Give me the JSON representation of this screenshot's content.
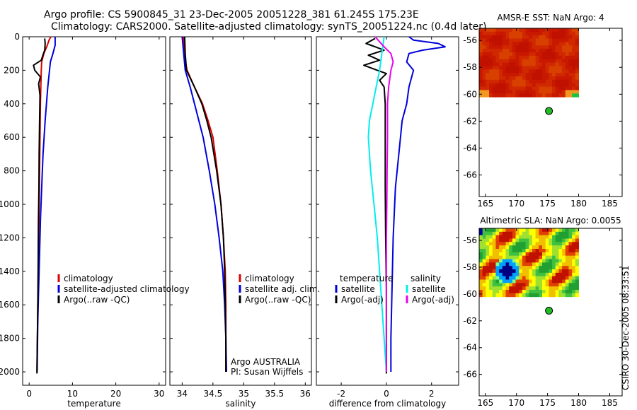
{
  "title": {
    "line1": "Argo profile: CS 5900845_31 23-Dec-2005 20051228_381 61.245S 175.23E",
    "line2": "Climatology: CARS2000. Satellite-adjusted climatology: synTS_20051224.nc (0.4d later)"
  },
  "side_label": "CSIRO 30-Dec-2005 08:33:51",
  "colors": {
    "climatology": "#dd0000",
    "satellite": "#0000dd",
    "argo": "#000000",
    "salinity_satellite": "#00eeee",
    "salinity_argo": "#ee00ee",
    "float_marker": "#22bb22"
  },
  "chart_data": [
    {
      "id": "temperature",
      "type": "line",
      "xlabel": "temperature",
      "ylabel": "",
      "xlim": [
        -1.5,
        31.5
      ],
      "xticks": [
        0,
        10,
        20,
        30
      ],
      "ylim": [
        2080,
        0
      ],
      "yticks": [
        0,
        200,
        400,
        600,
        800,
        1000,
        1200,
        1400,
        1600,
        1800,
        2000
      ],
      "legend": [
        {
          "label": "climatology",
          "color": "#dd0000"
        },
        {
          "label": "satellite-adjusted climatology",
          "color": "#0000dd"
        },
        {
          "label": "Argo(..raw -QC)",
          "color": "#000000"
        }
      ],
      "series": [
        {
          "name": "climatology",
          "color": "#dd0000",
          "points": [
            [
              5.0,
              0
            ],
            [
              4.6,
              20
            ],
            [
              4.2,
              50
            ],
            [
              3.4,
              100
            ],
            [
              2.9,
              150
            ],
            [
              2.8,
              200
            ],
            [
              2.7,
              300
            ],
            [
              2.6,
              400
            ],
            [
              2.55,
              500
            ],
            [
              2.45,
              700
            ],
            [
              2.35,
              900
            ],
            [
              2.25,
              1100
            ],
            [
              2.15,
              1300
            ],
            [
              2.05,
              1500
            ],
            [
              1.95,
              1700
            ],
            [
              1.85,
              1900
            ],
            [
              1.8,
              2000
            ]
          ]
        },
        {
          "name": "satellite-adjusted climatology",
          "color": "#0000dd",
          "points": [
            [
              6.0,
              0
            ],
            [
              6.0,
              50
            ],
            [
              5.5,
              100
            ],
            [
              4.9,
              150
            ],
            [
              4.3,
              300
            ],
            [
              3.7,
              500
            ],
            [
              3.2,
              700
            ],
            [
              2.9,
              900
            ],
            [
              2.6,
              1100
            ],
            [
              2.4,
              1300
            ],
            [
              2.2,
              1500
            ],
            [
              2.0,
              1700
            ],
            [
              1.9,
              1900
            ],
            [
              1.85,
              2000
            ]
          ]
        },
        {
          "name": "Argo(..raw -QC)",
          "color": "#000000",
          "points": [
            [
              3.6,
              10
            ],
            [
              3.7,
              40
            ],
            [
              3.6,
              80
            ],
            [
              3.3,
              100
            ],
            [
              2.8,
              140
            ],
            [
              1.0,
              170
            ],
            [
              1.3,
              200
            ],
            [
              2.6,
              240
            ],
            [
              2.2,
              280
            ],
            [
              2.5,
              350
            ],
            [
              2.4,
              500
            ],
            [
              2.3,
              700
            ],
            [
              2.25,
              900
            ],
            [
              2.15,
              1100
            ],
            [
              2.1,
              1300
            ],
            [
              2.05,
              1500
            ],
            [
              1.95,
              1700
            ],
            [
              1.85,
              1900
            ],
            [
              1.8,
              2010
            ]
          ]
        }
      ]
    },
    {
      "id": "salinity",
      "type": "line",
      "xlabel": "salinity",
      "ylabel": "",
      "xlim": [
        33.8,
        36.1
      ],
      "xticks": [
        34,
        34.5,
        35,
        35.5,
        36
      ],
      "ylim": [
        2080,
        0
      ],
      "yticks": [
        0,
        200,
        400,
        600,
        800,
        1000,
        1200,
        1400,
        1600,
        1800,
        2000
      ],
      "legend": [
        {
          "label": "climatology",
          "color": "#dd0000"
        },
        {
          "label": "satellite adj. clim.",
          "color": "#0000dd"
        },
        {
          "label": "Argo(..raw -QC)",
          "color": "#000000"
        }
      ],
      "annotation": [
        "Argo AUSTRALIA",
        "PI: Susan Wijffels"
      ],
      "series": [
        {
          "name": "climatology",
          "color": "#dd0000",
          "points": [
            [
              34.02,
              0
            ],
            [
              34.03,
              100
            ],
            [
              34.08,
              200
            ],
            [
              34.2,
              300
            ],
            [
              34.33,
              400
            ],
            [
              34.42,
              500
            ],
            [
              34.5,
              600
            ],
            [
              34.57,
              800
            ],
            [
              34.63,
              1000
            ],
            [
              34.67,
              1200
            ],
            [
              34.7,
              1400
            ],
            [
              34.71,
              1600
            ],
            [
              34.71,
              1800
            ],
            [
              34.71,
              2000
            ]
          ]
        },
        {
          "name": "satellite adj. clim.",
          "color": "#0000dd",
          "points": [
            [
              34.0,
              0
            ],
            [
              34.02,
              80
            ],
            [
              34.05,
              200
            ],
            [
              34.13,
              300
            ],
            [
              34.2,
              400
            ],
            [
              34.27,
              500
            ],
            [
              34.34,
              600
            ],
            [
              34.44,
              800
            ],
            [
              34.53,
              1000
            ],
            [
              34.6,
              1200
            ],
            [
              34.66,
              1400
            ],
            [
              34.69,
              1600
            ],
            [
              34.71,
              1800
            ],
            [
              34.72,
              2000
            ]
          ]
        },
        {
          "name": "Argo(..raw -QC)",
          "color": "#000000",
          "points": [
            [
              34.04,
              0
            ],
            [
              34.05,
              100
            ],
            [
              34.07,
              200
            ],
            [
              34.2,
              300
            ],
            [
              34.32,
              400
            ],
            [
              34.4,
              500
            ],
            [
              34.47,
              600
            ],
            [
              34.56,
              800
            ],
            [
              34.63,
              1000
            ],
            [
              34.67,
              1200
            ],
            [
              34.69,
              1400
            ],
            [
              34.7,
              1600
            ],
            [
              34.71,
              1800
            ],
            [
              34.71,
              2000
            ]
          ]
        }
      ]
    },
    {
      "id": "difference",
      "type": "line",
      "xlabel": "difference from climatology",
      "ylabel": "",
      "xlim": [
        -3.1,
        3.2
      ],
      "xticks": [
        -2,
        0,
        2
      ],
      "ylim": [
        2080,
        0
      ],
      "yticks": [
        0,
        200,
        400,
        600,
        800,
        1000,
        1200,
        1400,
        1600,
        1800,
        2000
      ],
      "legend": [
        {
          "label": "temperature",
          "color": ""
        },
        {
          "label": "satellite",
          "color": "#0000dd"
        },
        {
          "label": "Argo(-adj)",
          "color": "#000000"
        },
        {
          "label": "salinity",
          "color": ""
        },
        {
          "label": "satellite",
          "color": "#00eeee"
        },
        {
          "label": "Argo(-adj)",
          "color": "#ee00ee"
        }
      ],
      "series": [
        {
          "name": "temperature satellite",
          "color": "#0000dd",
          "points": [
            [
              1.0,
              0
            ],
            [
              1.2,
              20
            ],
            [
              2.3,
              40
            ],
            [
              2.6,
              60
            ],
            [
              1.6,
              80
            ],
            [
              1.0,
              100
            ],
            [
              0.9,
              150
            ],
            [
              1.2,
              200
            ],
            [
              1.0,
              300
            ],
            [
              0.9,
              400
            ],
            [
              0.7,
              500
            ],
            [
              0.55,
              700
            ],
            [
              0.4,
              900
            ],
            [
              0.3,
              1200
            ],
            [
              0.25,
              1500
            ],
            [
              0.2,
              1800
            ],
            [
              0.2,
              2000
            ]
          ]
        },
        {
          "name": "temperature Argo(-adj)",
          "color": "#000000",
          "points": [
            [
              -0.5,
              10
            ],
            [
              -0.9,
              40
            ],
            [
              -0.5,
              60
            ],
            [
              -0.1,
              80
            ],
            [
              -0.8,
              110
            ],
            [
              -0.3,
              140
            ],
            [
              -1.0,
              170
            ],
            [
              -0.4,
              200
            ],
            [
              0.0,
              220
            ],
            [
              -0.3,
              260
            ],
            [
              -0.1,
              300
            ],
            [
              -0.05,
              400
            ],
            [
              -0.05,
              600
            ],
            [
              -0.05,
              900
            ],
            [
              -0.03,
              1200
            ],
            [
              0.0,
              1500
            ],
            [
              0.0,
              1800
            ],
            [
              0.0,
              2010
            ]
          ]
        },
        {
          "name": "salinity satellite",
          "color": "#00eeee",
          "points": [
            [
              -0.1,
              0
            ],
            [
              -0.2,
              100
            ],
            [
              -0.3,
              200
            ],
            [
              -0.45,
              300
            ],
            [
              -0.6,
              400
            ],
            [
              -0.75,
              500
            ],
            [
              -0.8,
              600
            ],
            [
              -0.7,
              800
            ],
            [
              -0.55,
              1000
            ],
            [
              -0.4,
              1200
            ],
            [
              -0.3,
              1400
            ],
            [
              -0.2,
              1600
            ],
            [
              -0.1,
              1800
            ],
            [
              0.0,
              2000
            ]
          ]
        },
        {
          "name": "salinity Argo(-adj)",
          "color": "#ee00ee",
          "points": [
            [
              -0.5,
              0
            ],
            [
              -0.1,
              60
            ],
            [
              0.2,
              100
            ],
            [
              0.3,
              150
            ],
            [
              0.2,
              200
            ],
            [
              0.1,
              300
            ],
            [
              0.05,
              400
            ],
            [
              0.05,
              600
            ],
            [
              0.03,
              800
            ],
            [
              0.02,
              1000
            ],
            [
              0.0,
              1200
            ],
            [
              0.0,
              1500
            ],
            [
              0.0,
              1800
            ],
            [
              0.0,
              2000
            ]
          ]
        }
      ]
    },
    {
      "id": "sst_map",
      "type": "heatmap",
      "title": "AMSR-E SST: NaN Argo: 4",
      "xlim": [
        164,
        187
      ],
      "xticks": [
        165,
        170,
        175,
        180,
        185
      ],
      "ylim": [
        -67.6,
        -55.1
      ],
      "yticks": [
        -56,
        -58,
        -60,
        -62,
        -64,
        -66
      ],
      "float": {
        "lon": 175.23,
        "lat": -61.245
      }
    },
    {
      "id": "sla_map",
      "type": "heatmap",
      "title": "Altimetric SLA: NaN Argo: 0.0055",
      "xlim": [
        164,
        187
      ],
      "xticks": [
        165,
        170,
        175,
        180,
        185
      ],
      "ylim": [
        -67.6,
        -55.1
      ],
      "yticks": [
        -56,
        -58,
        -60,
        -62,
        -64,
        -66
      ],
      "float": {
        "lon": 175.23,
        "lat": -61.245
      }
    }
  ]
}
